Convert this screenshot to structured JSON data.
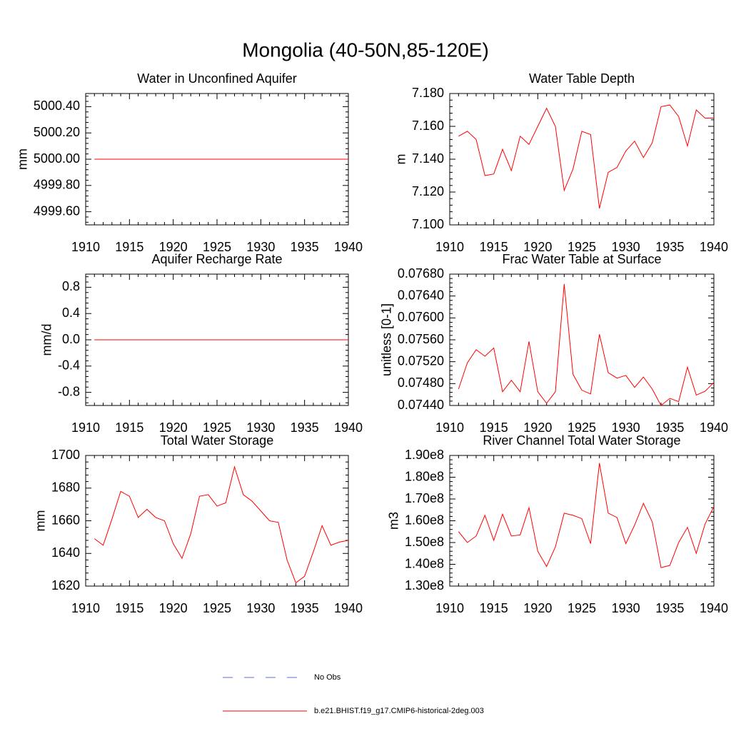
{
  "title": "Mongolia (40-50N,85-120E)",
  "legend": [
    {
      "name": "No Obs",
      "color": "#5b6fd6",
      "dashed": true
    },
    {
      "name": "b.e21.BHIST.f19_g17.CMIP6-historical-2deg.003",
      "color": "#ff0000",
      "dashed": false
    }
  ],
  "chart_data": [
    {
      "type": "line",
      "title": "Water in Unconfined Aquifer",
      "ylabel": "mm",
      "x": [
        1911,
        1912,
        1913,
        1914,
        1915,
        1916,
        1917,
        1918,
        1919,
        1920,
        1921,
        1922,
        1923,
        1924,
        1925,
        1926,
        1927,
        1928,
        1929,
        1930,
        1931,
        1932,
        1933,
        1934,
        1935,
        1936,
        1937,
        1938,
        1939,
        1940
      ],
      "xlim": [
        1910,
        1940
      ],
      "xticks": [
        1910,
        1915,
        1920,
        1925,
        1930,
        1935,
        1940
      ],
      "ylim": [
        4999.5,
        5000.5
      ],
      "yticks": [
        {
          "value": 4999.6,
          "label": "4999.60"
        },
        {
          "value": 4999.8,
          "label": "4999.80"
        },
        {
          "value": 5000,
          "label": "5000.00"
        },
        {
          "value": 5000.2,
          "label": "5000.20"
        },
        {
          "value": 5000.4,
          "label": "5000.40"
        }
      ],
      "color": "#ff0000",
      "values": [
        5000,
        5000,
        5000,
        5000,
        5000,
        5000,
        5000,
        5000,
        5000,
        5000,
        5000,
        5000,
        5000,
        5000,
        5000,
        5000,
        5000,
        5000,
        5000,
        5000,
        5000,
        5000,
        5000,
        5000,
        5000,
        5000,
        5000,
        5000,
        5000,
        5000
      ]
    },
    {
      "type": "line",
      "title": "Water Table Depth",
      "ylabel": "m",
      "x": [
        1911,
        1912,
        1913,
        1914,
        1915,
        1916,
        1917,
        1918,
        1919,
        1920,
        1921,
        1922,
        1923,
        1924,
        1925,
        1926,
        1927,
        1928,
        1929,
        1930,
        1931,
        1932,
        1933,
        1934,
        1935,
        1936,
        1937,
        1938,
        1939,
        1940
      ],
      "xlim": [
        1910,
        1940
      ],
      "xticks": [
        1910,
        1915,
        1920,
        1925,
        1930,
        1935,
        1940
      ],
      "ylim": [
        7.1,
        7.18
      ],
      "yticks": [
        {
          "value": 7.1,
          "label": "7.100"
        },
        {
          "value": 7.12,
          "label": "7.120"
        },
        {
          "value": 7.14,
          "label": "7.140"
        },
        {
          "value": 7.16,
          "label": "7.160"
        },
        {
          "value": 7.18,
          "label": "7.180"
        }
      ],
      "color": "#ff0000",
      "values": [
        7.154,
        7.157,
        7.152,
        7.13,
        7.131,
        7.146,
        7.133,
        7.154,
        7.149,
        7.16,
        7.171,
        7.16,
        7.121,
        7.134,
        7.157,
        7.155,
        7.11,
        7.132,
        7.135,
        7.145,
        7.151,
        7.141,
        7.15,
        7.172,
        7.173,
        7.166,
        7.148,
        7.17,
        7.165,
        7.165
      ]
    },
    {
      "type": "line",
      "title": "Aquifer Recharge Rate",
      "ylabel": "mm/d",
      "x": [
        1911,
        1912,
        1913,
        1914,
        1915,
        1916,
        1917,
        1918,
        1919,
        1920,
        1921,
        1922,
        1923,
        1924,
        1925,
        1926,
        1927,
        1928,
        1929,
        1930,
        1931,
        1932,
        1933,
        1934,
        1935,
        1936,
        1937,
        1938,
        1939,
        1940
      ],
      "xlim": [
        1910,
        1940
      ],
      "xticks": [
        1910,
        1915,
        1920,
        1925,
        1930,
        1935,
        1940
      ],
      "ylim": [
        -1,
        1
      ],
      "yticks": [
        -0.8,
        -0.4,
        {
          "value": 0,
          "label": "0.0"
        },
        0.4,
        0.8
      ],
      "color": "#ff0000",
      "values": [
        0,
        0,
        0,
        0,
        0,
        0,
        0,
        0,
        0,
        0,
        0,
        0,
        0,
        0,
        0,
        0,
        0,
        0,
        0,
        0,
        0,
        0,
        0,
        0,
        0,
        0,
        0,
        0,
        0,
        0
      ]
    },
    {
      "type": "line",
      "title": "Frac Water Table at Surface",
      "ylabel": "unitless [0-1]",
      "x": [
        1911,
        1912,
        1913,
        1914,
        1915,
        1916,
        1917,
        1918,
        1919,
        1920,
        1921,
        1922,
        1923,
        1924,
        1925,
        1926,
        1927,
        1928,
        1929,
        1930,
        1931,
        1932,
        1933,
        1934,
        1935,
        1936,
        1937,
        1938,
        1939,
        1940
      ],
      "xlim": [
        1910,
        1940
      ],
      "xticks": [
        1910,
        1915,
        1920,
        1925,
        1930,
        1935,
        1940
      ],
      "ylim": [
        0.0744,
        0.0768
      ],
      "yticks": [
        {
          "value": 0.0744,
          "label": "0.07440"
        },
        {
          "value": 0.0748,
          "label": "0.07480"
        },
        {
          "value": 0.0752,
          "label": "0.07520"
        },
        {
          "value": 0.0756,
          "label": "0.07560"
        },
        {
          "value": 0.076,
          "label": "0.07600"
        },
        {
          "value": 0.0764,
          "label": "0.07640"
        },
        {
          "value": 0.0768,
          "label": "0.07680"
        }
      ],
      "color": "#ff0000",
      "values": [
        0.0747,
        0.07518,
        0.07542,
        0.0753,
        0.07545,
        0.07465,
        0.07486,
        0.07465,
        0.07557,
        0.07465,
        0.07444,
        0.07465,
        0.07662,
        0.07497,
        0.07468,
        0.07461,
        0.0757,
        0.075,
        0.0749,
        0.07495,
        0.07473,
        0.07492,
        0.0747,
        0.0744,
        0.07453,
        0.07447,
        0.0751,
        0.07459,
        0.07466,
        0.07482
      ]
    },
    {
      "type": "line",
      "title": "Total Water Storage",
      "ylabel": "mm",
      "x": [
        1911,
        1912,
        1913,
        1914,
        1915,
        1916,
        1917,
        1918,
        1919,
        1920,
        1921,
        1922,
        1923,
        1924,
        1925,
        1926,
        1927,
        1928,
        1929,
        1930,
        1931,
        1932,
        1933,
        1934,
        1935,
        1936,
        1937,
        1938,
        1939,
        1940
      ],
      "xlim": [
        1910,
        1940
      ],
      "xticks": [
        1910,
        1915,
        1920,
        1925,
        1930,
        1935,
        1940
      ],
      "ylim": [
        1620,
        1700
      ],
      "yticks": [
        1620,
        1640,
        1660,
        1680,
        1700
      ],
      "color": "#ff0000",
      "values": [
        1649,
        1645,
        1661,
        1678,
        1675,
        1662,
        1667,
        1662,
        1660,
        1646,
        1637,
        1652,
        1675,
        1676,
        1669,
        1671,
        1693,
        1676,
        1672,
        1666,
        1660,
        1659,
        1636,
        1622,
        1626,
        1641,
        1657,
        1645,
        1647,
        1648
      ]
    },
    {
      "type": "line",
      "title": "River Channel Total Water Storage",
      "ylabel": "m3",
      "x": [
        1911,
        1912,
        1913,
        1914,
        1915,
        1916,
        1917,
        1918,
        1919,
        1920,
        1921,
        1922,
        1923,
        1924,
        1925,
        1926,
        1927,
        1928,
        1929,
        1930,
        1931,
        1932,
        1933,
        1934,
        1935,
        1936,
        1937,
        1938,
        1939,
        1940
      ],
      "xlim": [
        1910,
        1940
      ],
      "xticks": [
        1910,
        1915,
        1920,
        1925,
        1930,
        1935,
        1940
      ],
      "ylim": [
        130000000,
        190000000
      ],
      "yticks": [
        {
          "value": 130000000,
          "label": "1.30e8"
        },
        {
          "value": 140000000,
          "label": "1.40e8"
        },
        {
          "value": 150000000,
          "label": "1.50e8"
        },
        {
          "value": 160000000,
          "label": "1.60e8"
        },
        {
          "value": 170000000,
          "label": "1.70e8"
        },
        {
          "value": 180000000,
          "label": "1.80e8"
        },
        {
          "value": 190000000,
          "label": "1.90e8"
        }
      ],
      "color": "#ff0000",
      "values": [
        155000000,
        150000000,
        153000000,
        162500000,
        151000000,
        163000000,
        153000000,
        153500000,
        166000000,
        146000000,
        139000000,
        148000000,
        163500000,
        162500000,
        161000000,
        149500000,
        186500000,
        163500000,
        161500000,
        149500000,
        158000000,
        168000000,
        159500000,
        138500000,
        139500000,
        150000000,
        157000000,
        145000000,
        158500000,
        166500000
      ]
    }
  ]
}
